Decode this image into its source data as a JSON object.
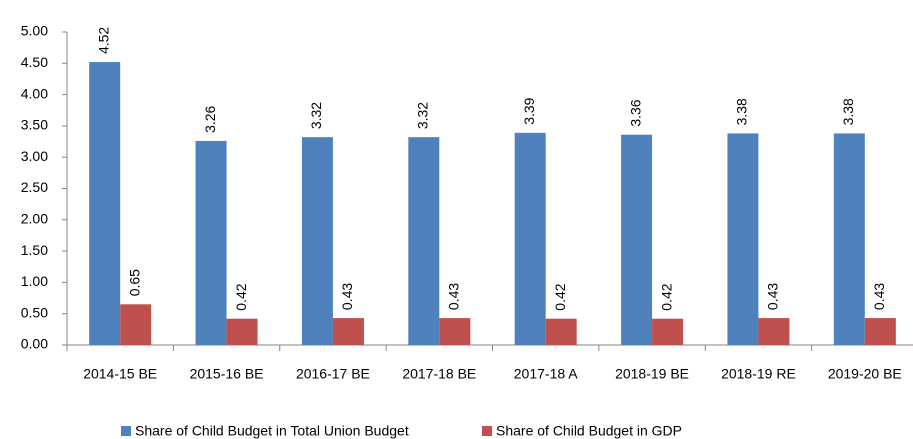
{
  "chart_data": {
    "type": "bar",
    "categories": [
      "2014-15 BE",
      "2015-16 BE",
      "2016-17 BE",
      "2017-18 BE",
      "2017-18 A",
      "2018-19 BE",
      "2018-19 RE",
      "2019-20 BE"
    ],
    "series": [
      {
        "name": "Share of Child Budget in Total Union Budget",
        "color": "#4f81bd",
        "values": [
          4.52,
          3.26,
          3.32,
          3.32,
          3.39,
          3.36,
          3.38,
          3.38
        ]
      },
      {
        "name": "Share of Child Budget in GDP",
        "color": "#c0504d",
        "values": [
          0.65,
          0.42,
          0.43,
          0.43,
          0.42,
          0.42,
          0.43,
          0.43
        ]
      }
    ],
    "ylim": [
      0,
      5
    ],
    "yticks": [
      {
        "value": 0,
        "label": "0.00"
      },
      {
        "value": 0.5,
        "label": "0.50"
      },
      {
        "value": 1,
        "label": "1.00"
      },
      {
        "value": 1.5,
        "label": "1.50"
      },
      {
        "value": 2,
        "label": "2.00"
      },
      {
        "value": 2.5,
        "label": "2.50"
      },
      {
        "value": 3,
        "label": "3.00"
      },
      {
        "value": 3.5,
        "label": "3.50"
      },
      {
        "value": 4,
        "label": "4.00"
      },
      {
        "value": 4.5,
        "label": "4.50"
      },
      {
        "value": 5,
        "label": "5.00"
      }
    ],
    "grid": false,
    "legend": "bottom"
  }
}
